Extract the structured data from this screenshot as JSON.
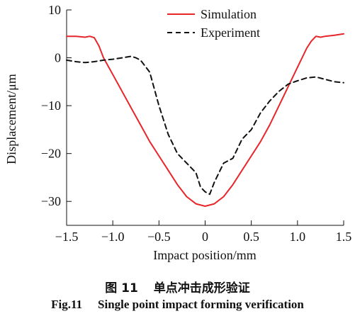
{
  "chart_data": {
    "type": "line",
    "xlabel": "Impact position/mm",
    "ylabel": "Displacement/μm",
    "xlim": [
      -1.5,
      1.5
    ],
    "ylim": [
      -35,
      10
    ],
    "x_ticks": [
      "−1.5",
      "−1.0",
      "−0.5",
      "0",
      "0.5",
      "1.0",
      "1.5"
    ],
    "x_tick_values": [
      -1.5,
      -1.0,
      -0.5,
      0,
      0.5,
      1.0,
      1.5
    ],
    "y_ticks": [
      "10",
      "0",
      "−10",
      "−20",
      "−30"
    ],
    "y_tick_values": [
      10,
      0,
      -10,
      -20,
      -30
    ],
    "legend_position": "top-right",
    "series": [
      {
        "name": "Simulation",
        "color": "#e8262a",
        "style": "solid",
        "x": [
          -1.5,
          -1.4,
          -1.3,
          -1.25,
          -1.2,
          -1.15,
          -1.1,
          -1.0,
          -0.9,
          -0.8,
          -0.7,
          -0.6,
          -0.5,
          -0.4,
          -0.3,
          -0.2,
          -0.1,
          0.0,
          0.1,
          0.2,
          0.3,
          0.4,
          0.5,
          0.6,
          0.7,
          0.8,
          0.9,
          1.0,
          1.1,
          1.15,
          1.2,
          1.25,
          1.3,
          1.4,
          1.5
        ],
        "y": [
          4.5,
          4.5,
          4.3,
          4.5,
          4.2,
          2.5,
          0.0,
          -3.5,
          -7.0,
          -10.5,
          -14.0,
          -17.5,
          -20.5,
          -23.5,
          -26.5,
          -29.0,
          -30.5,
          -31.0,
          -30.5,
          -29.0,
          -26.5,
          -23.5,
          -20.5,
          -17.5,
          -14.0,
          -10.0,
          -6.0,
          -2.0,
          2.0,
          3.5,
          4.5,
          4.3,
          4.5,
          4.7,
          5.0
        ]
      },
      {
        "name": "Experiment",
        "color": "#111111",
        "style": "dashed",
        "x": [
          -1.5,
          -1.4,
          -1.3,
          -1.2,
          -1.1,
          -1.0,
          -0.9,
          -0.8,
          -0.75,
          -0.7,
          -0.6,
          -0.5,
          -0.4,
          -0.3,
          -0.2,
          -0.1,
          -0.05,
          0.0,
          0.05,
          0.1,
          0.2,
          0.3,
          0.4,
          0.5,
          0.6,
          0.7,
          0.8,
          0.9,
          1.0,
          1.1,
          1.2,
          1.3,
          1.4,
          1.5
        ],
        "y": [
          -0.5,
          -0.8,
          -1.0,
          -0.8,
          -0.5,
          -0.3,
          0.0,
          0.3,
          0.0,
          -0.5,
          -3.0,
          -10.0,
          -16.0,
          -20.0,
          -22.0,
          -24.0,
          -27.0,
          -28.0,
          -28.5,
          -26.0,
          -22.0,
          -21.0,
          -17.0,
          -15.0,
          -11.5,
          -9.0,
          -7.0,
          -5.5,
          -4.8,
          -4.2,
          -4.0,
          -4.5,
          -5.0,
          -5.2
        ]
      }
    ]
  },
  "caption_cn": {
    "fig": "图 11",
    "title": "单点冲击成形验证"
  },
  "caption_en": {
    "fig": "Fig.11",
    "title": "Single point impact forming verification"
  }
}
